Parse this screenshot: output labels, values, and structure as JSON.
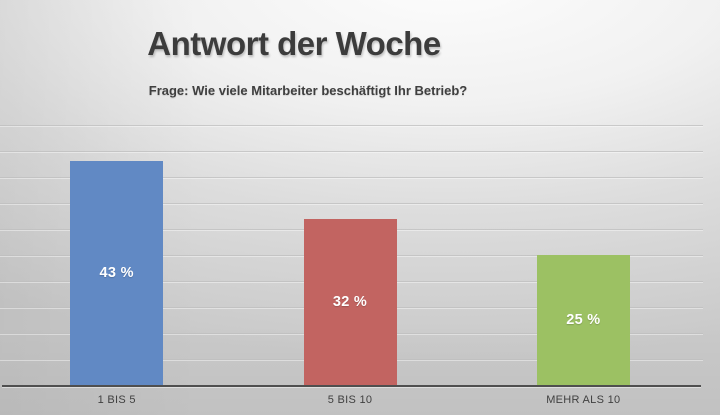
{
  "chart_data": {
    "type": "bar",
    "title": "Antwort der Woche",
    "subtitle": "Frage: Wie viele Mitarbeiter beschäftigt Ihr Betrieb?",
    "categories": [
      "1 BIS 5",
      "5 BIS 10",
      "MEHR ALS 10"
    ],
    "values": [
      43,
      32,
      25
    ],
    "value_labels": [
      "43 %",
      "32 %",
      "25 %"
    ],
    "series_colors": [
      "#6189C4",
      "#C26461",
      "#9CC163"
    ],
    "xlabel": "",
    "ylabel": "",
    "ylim": [
      0,
      50
    ],
    "gridline_step": 5,
    "grid": true,
    "legend": false,
    "value_label_color": "#FFFFFF",
    "category_label_color": "#404040",
    "gridline_color": "#BFBFBF",
    "axis_line_color": "#4F4F4F"
  }
}
